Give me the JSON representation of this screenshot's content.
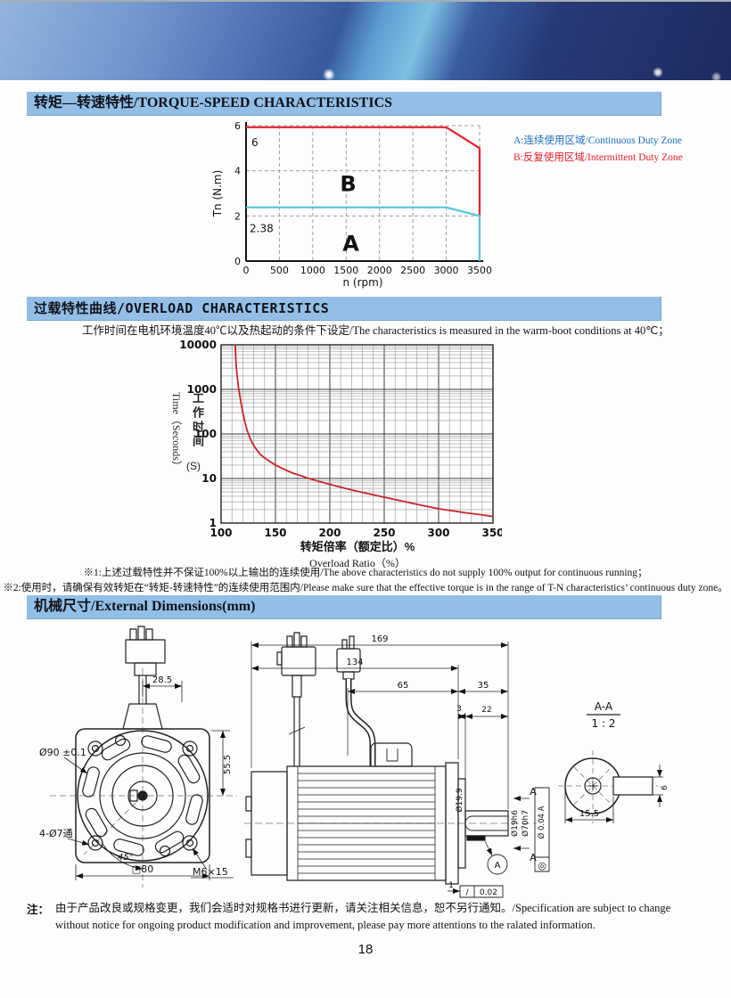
{
  "page": {
    "number": "18"
  },
  "sections": {
    "torque_speed": {
      "title": "转矩—转速特性/TORQUE-SPEED CHARACTERISTICS"
    },
    "overload": {
      "title": "过载特性曲线/OVERLOAD CHARACTERISTICS",
      "condition": "工作时间在电机环境温度40℃以及热起动的条件下设定/The characteristics is measured in the warm-boot conditions at 40℃；",
      "note1": "※1:上述过载特性并不保证100%以上输出的连续使用/The above characteristics do not supply 100% output for continuous running；",
      "note2": "※2:使用时，请确保有效转矩在“转矩-转速特性”的连续使用范围内/Please make sure that the effective torque is in the range of T-N characteristics’ continuous duty zone。"
    },
    "dimensions": {
      "title": "机械尺寸/External Dimensions(mm)"
    }
  },
  "legend": {
    "a": "A:连续使用区域/Continuous Duty Zone",
    "b": "B:反复使用区域/Intermittent Duty Zone",
    "a_color": "#1c6fbd",
    "b_color": "#e3242b"
  },
  "chart_data": [
    {
      "type": "line",
      "title": "Torque-Speed characteristics",
      "xlabel": "n (rpm)",
      "ylabel": "Tn (N.m)",
      "xlim": [
        0,
        3500
      ],
      "ylim": [
        0,
        6
      ],
      "xticks": [
        0,
        500,
        1000,
        1500,
        2000,
        2500,
        3000,
        3500
      ],
      "yticks": [
        0,
        2,
        4,
        6
      ],
      "grid": "dashed",
      "series": [
        {
          "name": "B Intermittent Duty Zone",
          "color": "#e3242b",
          "points": [
            [
              0,
              5.93
            ],
            [
              3000,
              5.93
            ],
            [
              3500,
              5.0
            ],
            [
              3500,
              2.0
            ]
          ]
        },
        {
          "name": "A Continuous Duty Zone",
          "color": "#56c3d6",
          "points": [
            [
              0,
              2.38
            ],
            [
              3000,
              2.38
            ],
            [
              3500,
              2.0
            ],
            [
              3500,
              0
            ]
          ]
        }
      ],
      "annotations": [
        {
          "text": "6",
          "color": "#e3242b"
        },
        {
          "text": "2.38",
          "color": "#56c3d6"
        },
        {
          "text": "B",
          "color": "#e3242b"
        },
        {
          "text": "A",
          "color": "#56c3d6"
        }
      ]
    },
    {
      "type": "line",
      "title": "Overload characteristics",
      "xlabel_cn": "转矩倍率（额定比）%",
      "xlabel_en": "Overload Ratio（%）",
      "ylabel_en": "Time（Seconds）",
      "ylabel_cn": "工作时间",
      "ylabel_unit": "(S)",
      "xlim": [
        100,
        350
      ],
      "ylim": [
        1,
        10000
      ],
      "yscale": "log",
      "xticks": [
        100,
        150,
        200,
        250,
        300,
        350
      ],
      "yticks": [
        1,
        10,
        100,
        1000,
        10000
      ],
      "grid": "log-major-minor",
      "color": "#c8252c",
      "points": [
        [
          113,
          10000
        ],
        [
          113.5,
          5000
        ],
        [
          114,
          3000
        ],
        [
          115,
          1800
        ],
        [
          116,
          1100
        ],
        [
          117,
          800
        ],
        [
          118,
          550
        ],
        [
          119,
          400
        ],
        [
          120,
          300
        ],
        [
          122,
          180
        ],
        [
          124,
          120
        ],
        [
          126,
          88
        ],
        [
          128,
          68
        ],
        [
          130,
          55
        ],
        [
          133,
          43
        ],
        [
          136,
          35
        ],
        [
          140,
          29
        ],
        [
          145,
          24
        ],
        [
          150,
          20
        ],
        [
          157,
          16.5
        ],
        [
          165,
          13.5
        ],
        [
          172,
          11.8
        ],
        [
          180,
          10.2
        ],
        [
          190,
          8.6
        ],
        [
          200,
          7.4
        ],
        [
          212,
          6.2
        ],
        [
          225,
          5.2
        ],
        [
          238,
          4.4
        ],
        [
          250,
          3.8
        ],
        [
          262,
          3.3
        ],
        [
          275,
          2.8
        ],
        [
          288,
          2.4
        ],
        [
          300,
          2.1
        ],
        [
          312,
          1.9
        ],
        [
          325,
          1.7
        ],
        [
          338,
          1.55
        ],
        [
          350,
          1.4
        ]
      ]
    }
  ],
  "drawings": {
    "front_view": {
      "d28_5": "28.5",
      "d55_5": "55.5",
      "d90": "Ø90 ±0.1",
      "holes": "4-Ø7通",
      "d45": "45°",
      "d80": "□80",
      "m6": "M6×15"
    },
    "side_view": {
      "d169": "169",
      "d134": "134",
      "d65": "65",
      "d35": "35",
      "d3": "3",
      "d22": "22",
      "d19_9": "Ø19.9",
      "d19h6": "Ø19h6",
      "d70h7": "Ø70h7",
      "d1": "1",
      "runout_frame": "Ø 0.04 A",
      "concentric_symbol": "◎",
      "flat_symbol": "∕",
      "flat_value": "0.02",
      "datum": "A",
      "section_mark": "A"
    },
    "section_view": {
      "title": "A-A",
      "scale": "1 : 2",
      "d15_5": "15.5",
      "d6": "6"
    }
  },
  "footer": {
    "note_prefix": "注：",
    "note": "由于产品改良或规格变更，我们会适时对规格书进行更新，请关注相关信息，恕不另行通知。/Specification are subject to change without notice for ongoing product modification and improvement, please pay more attentions to the ralated information."
  }
}
